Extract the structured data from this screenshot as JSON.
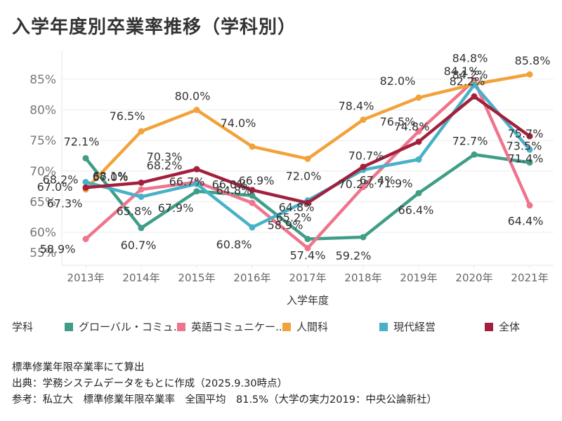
{
  "title": "入学年度別卒業率推移（学科別）",
  "chart_data": {
    "type": "line",
    "title": "入学年度別卒業率推移（学科別）",
    "xlabel": "入学年度",
    "ylabel": "",
    "categories": [
      "2013年",
      "2014年",
      "2015年",
      "2016年",
      "2017年",
      "2018年",
      "2019年",
      "2020年",
      "2021年"
    ],
    "y_ticks": [
      "85%",
      "80%",
      "75%",
      "70%",
      "65%",
      "60%",
      "55%"
    ],
    "ylim": [
      56.5,
      87.5
    ],
    "grid": true,
    "legend_position": "bottom",
    "series": [
      {
        "name": "グローバル・コミュ..",
        "color": "#3f9e87",
        "values": [
          72.1,
          60.7,
          66.7,
          66.0,
          58.9,
          59.2,
          66.4,
          72.7,
          71.4
        ],
        "labels": [
          "72.1%",
          "60.7%",
          "66.7%",
          "66.0%",
          "58.9%",
          "59.2%",
          "66.4%",
          "72.7%",
          "71.4%"
        ]
      },
      {
        "name": "英語コミュニケー..",
        "color": "#ee758e",
        "values": [
          58.9,
          67.0,
          68.2,
          64.8,
          57.4,
          67.4,
          76.5,
          84.8,
          64.4
        ],
        "labels": [
          "58.9%",
          "67.0%",
          "68.2%",
          "64.8%",
          "57.4%",
          "67.4%",
          "76.5%",
          "84.8%",
          "64.4%"
        ]
      },
      {
        "name": "人間科",
        "color": "#f2a23a",
        "values": [
          67.0,
          76.5,
          80.0,
          74.0,
          72.0,
          78.4,
          82.0,
          84.2,
          85.8
        ],
        "labels": [
          "67.0%",
          "76.5%",
          "80.0%",
          "74.0%",
          "72.0%",
          "78.4%",
          "82.0%",
          "84.2%",
          "85.8%"
        ]
      },
      {
        "name": "現代経営",
        "color": "#47b1c8",
        "values": [
          68.2,
          65.8,
          67.9,
          60.8,
          65.2,
          70.2,
          71.9,
          84.1,
          73.5
        ],
        "labels": [
          "68.2%",
          "65.8%",
          "67.9%",
          "60.8%",
          "65.2%",
          "70.2%",
          "71.9%",
          "84.1%",
          "73.5%"
        ]
      },
      {
        "name": "全体",
        "color": "#a3203d",
        "values": [
          67.3,
          68.1,
          70.3,
          66.9,
          64.8,
          70.7,
          74.8,
          82.2,
          75.7
        ],
        "labels": [
          "67.3%",
          "68.1%",
          "70.3%",
          "66.9%",
          "64.8%",
          "70.7%",
          "74.8%",
          "82.2%",
          "75.7%"
        ]
      }
    ]
  },
  "legend": {
    "title": "学科",
    "items": [
      {
        "label": "グローバル・コミュ..",
        "color": "#3f9e87"
      },
      {
        "label": "英語コミュニケー..",
        "color": "#ee758e"
      },
      {
        "label": "人間科",
        "color": "#f2a23a"
      },
      {
        "label": "現代経営",
        "color": "#47b1c8"
      },
      {
        "label": "全体",
        "color": "#a3203d"
      }
    ]
  },
  "notes": [
    "標準修業年限卒業率にて算出",
    "出典：学務システムデータをもとに作成（2025.9.30時点）",
    "参考：私立大　標準修業年限卒業率　全国平均　81.5%（大学の実力2019：中央公論新社）"
  ]
}
